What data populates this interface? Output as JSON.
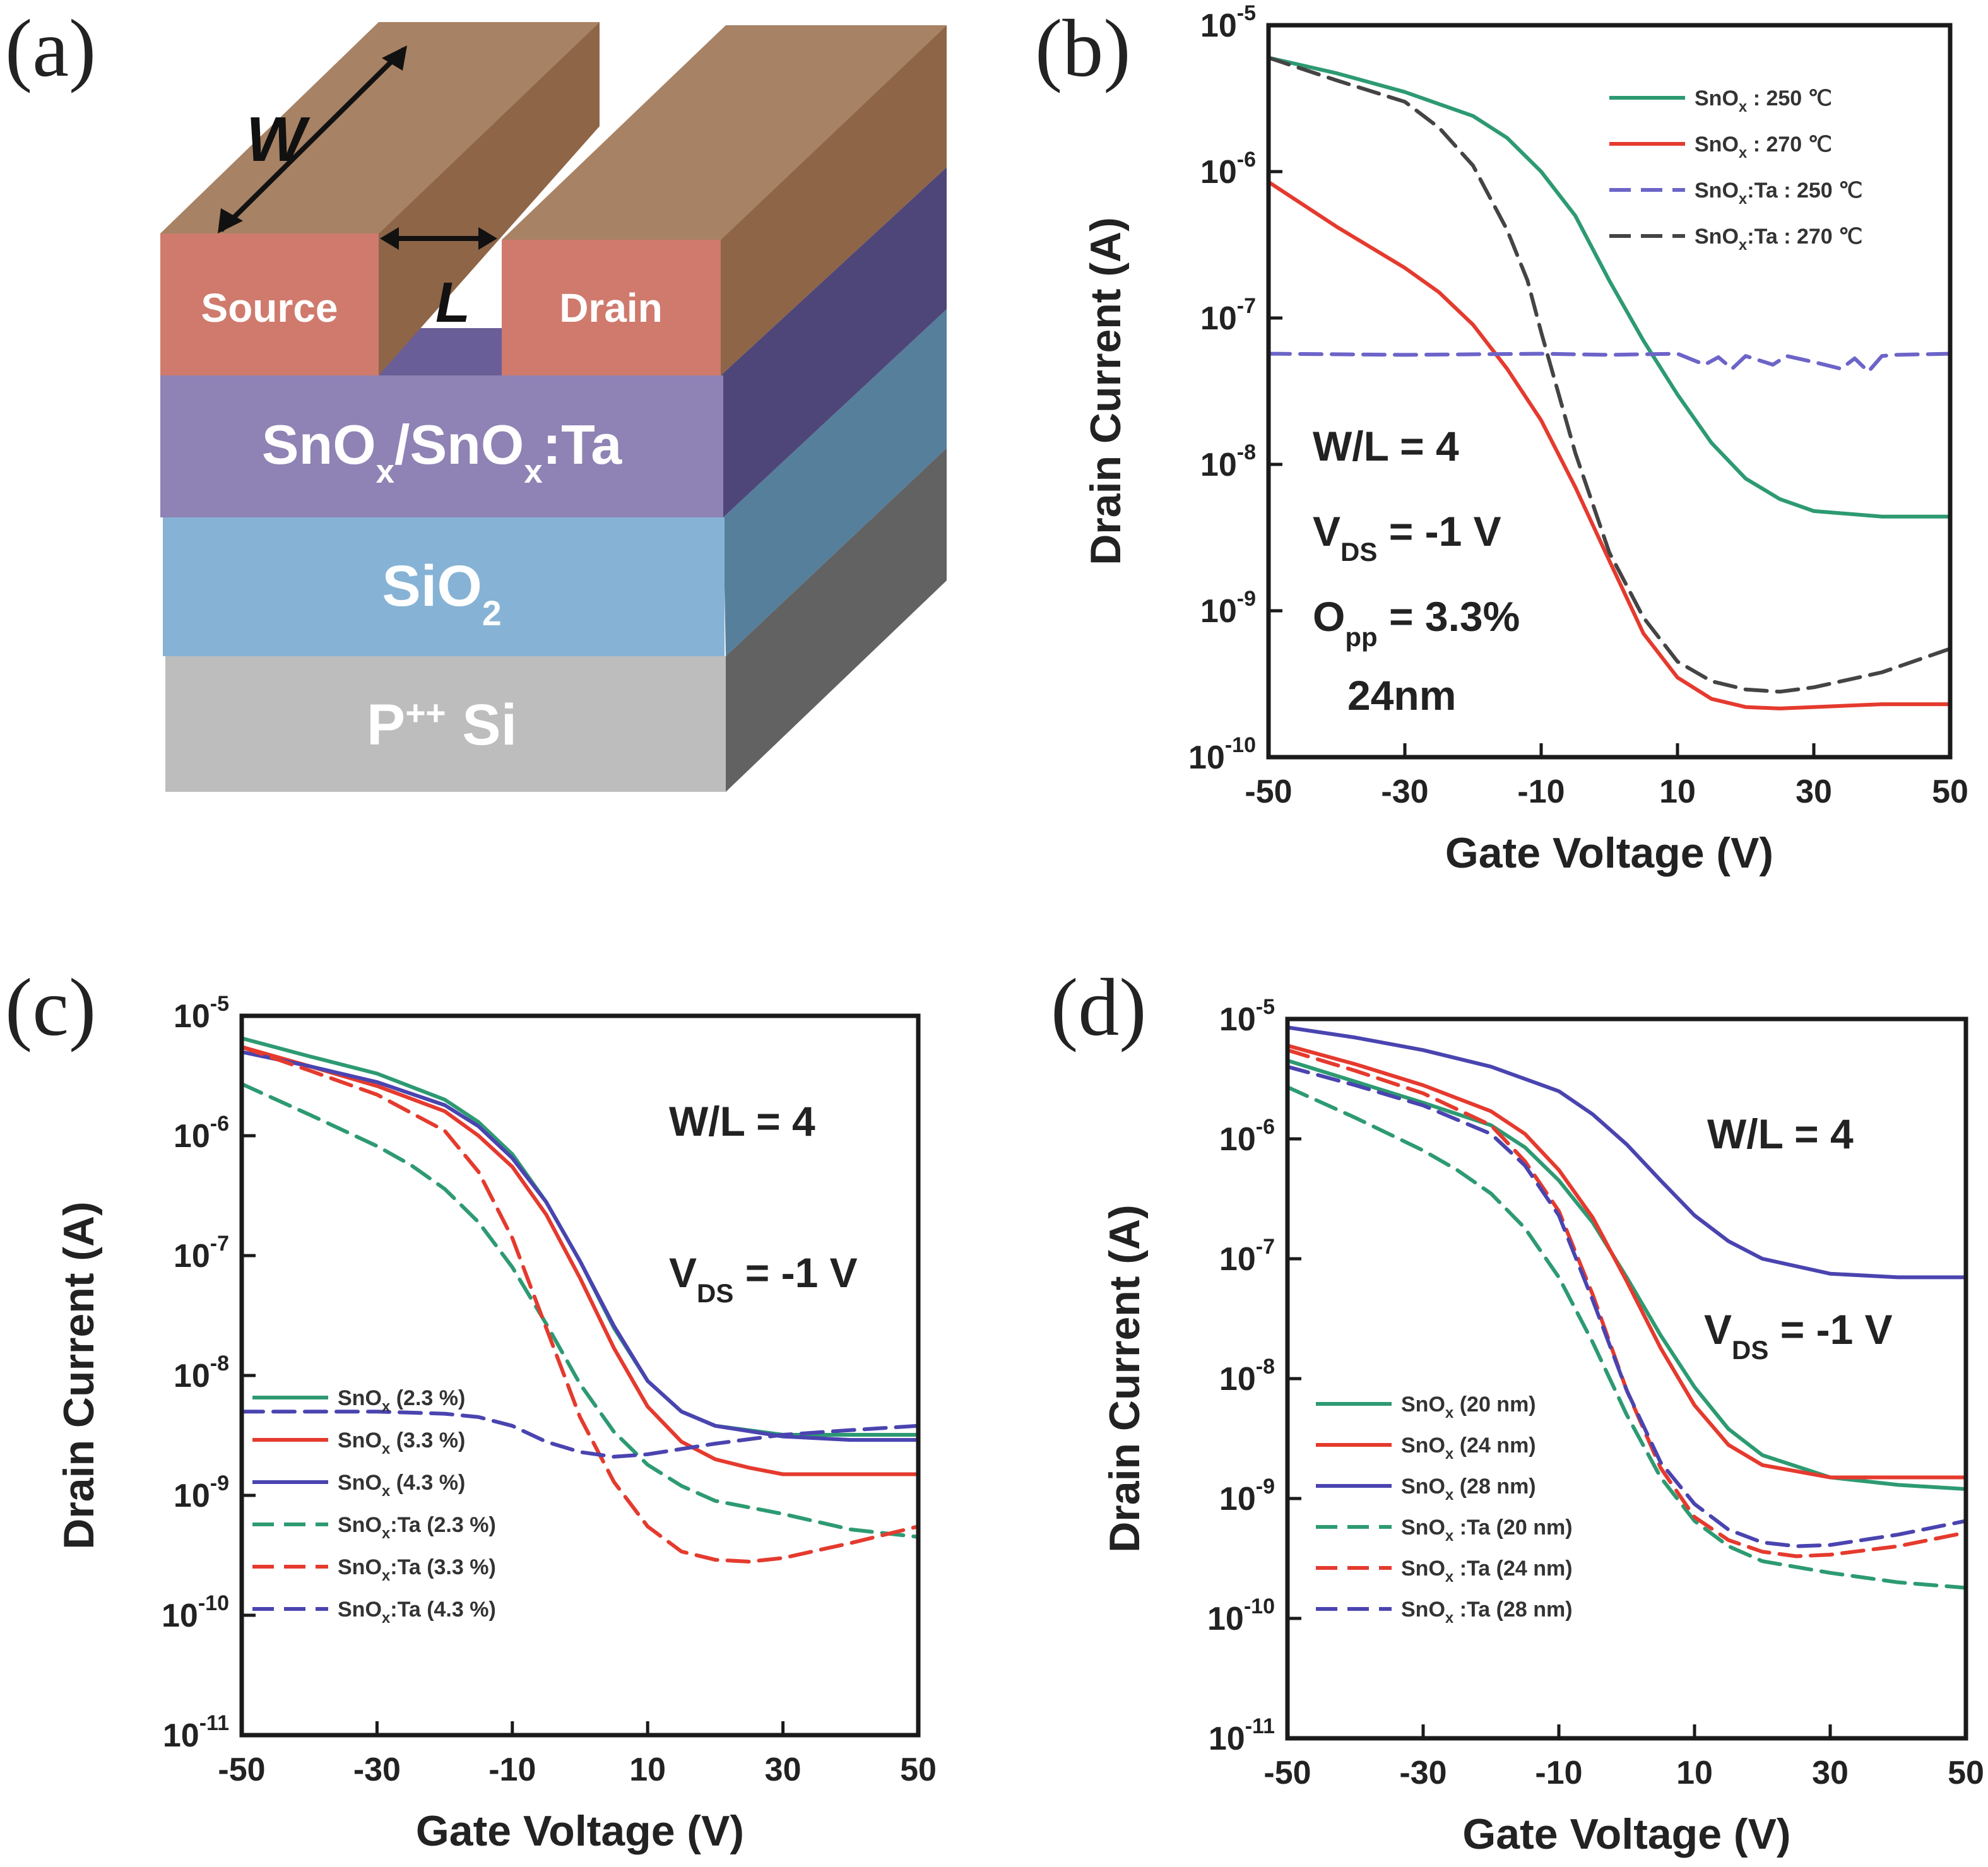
{
  "panel_a": {
    "letter": "(a)",
    "labels": {
      "w": "W",
      "l": "L",
      "source": "Source",
      "drain": "Drain",
      "channel": "SnOx/SnOx:Ta",
      "oxide": "SiO2",
      "substrate": "P++ Si"
    },
    "colors": {
      "contact_top": "#a88264",
      "contact_front": "#cf7a6d",
      "contact_side": "#8e6547",
      "channel_front": "#8f82b4",
      "channel_side": "#4e4679",
      "oxide_front": "#86b3d5",
      "oxide_side": "#567f9c",
      "substrate_front": "#bdbdbd",
      "substrate_side": "#626262"
    }
  },
  "chart_data": [
    {
      "id": "b",
      "letter": "(b)",
      "type": "line",
      "xlabel": "Gate Voltage (V)",
      "ylabel": "Drain Current (A)",
      "xlim": [
        -50,
        50
      ],
      "ylim": [
        1e-10,
        1e-05
      ],
      "yscale": "log",
      "xticks": [
        "-50",
        "-30",
        "-10",
        "10",
        "30",
        "50"
      ],
      "yticks": [
        {
          "base": "10",
          "exp": "-10"
        },
        {
          "base": "10",
          "exp": "-9"
        },
        {
          "base": "10",
          "exp": "-8"
        },
        {
          "base": "10",
          "exp": "-7"
        },
        {
          "base": "10",
          "exp": "-6"
        },
        {
          "base": "10",
          "exp": "-5"
        }
      ],
      "annotations": [
        {
          "text": "W/L = 4",
          "sub": "",
          "after": ""
        },
        {
          "text": "V",
          "sub": "DS",
          "after": " = -1 V"
        },
        {
          "text": "O",
          "sub": "pp",
          "after": " = 3.3%"
        },
        {
          "text": "24nm",
          "sub": "",
          "after": ""
        }
      ],
      "legend_position": "top-right",
      "series": [
        {
          "name": "SnO",
          "sub": "x",
          "suffix": " : 250 ℃",
          "color": "#2d9a72",
          "dash": false,
          "x": [
            -50,
            -40,
            -30,
            -20,
            -15,
            -10,
            -5,
            0,
            5,
            10,
            15,
            20,
            25,
            30,
            40,
            50
          ],
          "y": [
            6e-06,
            4.7e-06,
            3.5e-06,
            2.4e-06,
            1.7e-06,
            1e-06,
            5e-07,
            1.8e-07,
            7e-08,
            3e-08,
            1.4e-08,
            8e-09,
            5.8e-09,
            4.8e-09,
            4.4e-09,
            4.4e-09
          ]
        },
        {
          "name": "SnO",
          "sub": "x",
          "suffix": " : 270 ℃",
          "color": "#e53a2e",
          "dash": false,
          "x": [
            -50,
            -40,
            -30,
            -25,
            -20,
            -15,
            -10,
            -5,
            0,
            5,
            10,
            15,
            20,
            25,
            30,
            40,
            50
          ],
          "y": [
            8.5e-07,
            4.2e-07,
            2.2e-07,
            1.5e-07,
            9e-08,
            4.5e-08,
            2e-08,
            7e-09,
            2.2e-09,
            7e-10,
            3.5e-10,
            2.5e-10,
            2.2e-10,
            2.15e-10,
            2.2e-10,
            2.3e-10,
            2.3e-10
          ]
        },
        {
          "name": "SnO",
          "sub": "x",
          "suffix": ":Ta : 250 ℃",
          "color": "#6c64c8",
          "dash": true,
          "x": [
            -50,
            -30,
            -10,
            0,
            10,
            14,
            16,
            18,
            20,
            24,
            26,
            30,
            34,
            36,
            38,
            40,
            42,
            50
          ],
          "y": [
            5.7e-08,
            5.6e-08,
            5.7e-08,
            5.6e-08,
            5.7e-08,
            4.8e-08,
            5.4e-08,
            4.5e-08,
            5.5e-08,
            4.8e-08,
            5.5e-08,
            5e-08,
            4.5e-08,
            5.3e-08,
            4.3e-08,
            5.5e-08,
            5.6e-08,
            5.7e-08
          ]
        },
        {
          "name": "SnO",
          "sub": "x",
          "suffix": ":Ta : 270 ℃",
          "color": "#444444",
          "dash": true,
          "x": [
            -50,
            -40,
            -30,
            -25,
            -20,
            -15,
            -12,
            -10,
            -5,
            0,
            5,
            10,
            15,
            20,
            25,
            30,
            40,
            50
          ],
          "y": [
            6e-06,
            4.2e-06,
            3e-06,
            2e-06,
            1.1e-06,
            4e-07,
            1.8e-07,
            8e-08,
            1.2e-08,
            2.5e-09,
            9e-10,
            4.5e-10,
            3.3e-10,
            2.9e-10,
            2.8e-10,
            3e-10,
            3.8e-10,
            5.5e-10
          ]
        }
      ]
    },
    {
      "id": "c",
      "letter": "(c)",
      "type": "line",
      "xlabel": "Gate Voltage (V)",
      "ylabel": "Drain Current (A)",
      "xlim": [
        -50,
        50
      ],
      "ylim": [
        1e-11,
        1e-05
      ],
      "yscale": "log",
      "xticks": [
        "-50",
        "-30",
        "-10",
        "10",
        "30",
        "50"
      ],
      "yticks": [
        {
          "base": "10",
          "exp": "-11"
        },
        {
          "base": "10",
          "exp": "-10"
        },
        {
          "base": "10",
          "exp": "-9"
        },
        {
          "base": "10",
          "exp": "-8"
        },
        {
          "base": "10",
          "exp": "-7"
        },
        {
          "base": "10",
          "exp": "-6"
        },
        {
          "base": "10",
          "exp": "-5"
        }
      ],
      "annotations": [
        {
          "text": "W/L = 4",
          "sub": "",
          "after": ""
        },
        {
          "text": "V",
          "sub": "DS",
          "after": " = -1 V"
        }
      ],
      "legend_position": "bottom-left",
      "series": [
        {
          "name": "SnO",
          "sub": "x",
          "suffix": " (2.3 %)",
          "color": "#2d9a72",
          "dash": false,
          "x": [
            -50,
            -40,
            -30,
            -20,
            -15,
            -10,
            -5,
            0,
            5,
            10,
            15,
            20,
            30,
            40,
            50
          ],
          "y": [
            6.5e-06,
            4.6e-06,
            3.3e-06,
            2e-06,
            1.3e-06,
            7e-07,
            2.8e-07,
            9e-08,
            2.5e-08,
            9e-09,
            5e-09,
            3.8e-09,
            3.2e-09,
            3.2e-09,
            3.2e-09
          ]
        },
        {
          "name": "SnO",
          "sub": "x",
          "suffix": " (3.3 %)",
          "color": "#e53a2e",
          "dash": false,
          "x": [
            -50,
            -40,
            -30,
            -20,
            -15,
            -10,
            -5,
            0,
            5,
            10,
            15,
            20,
            25,
            30,
            40,
            50
          ],
          "y": [
            5.5e-06,
            3.8e-06,
            2.6e-06,
            1.6e-06,
            1e-06,
            5.5e-07,
            2.2e-07,
            6.5e-08,
            1.7e-08,
            5.5e-09,
            2.8e-09,
            2e-09,
            1.7e-09,
            1.5e-09,
            1.5e-09,
            1.5e-09
          ]
        },
        {
          "name": "SnO",
          "sub": "x",
          "suffix": " (4.3 %)",
          "color": "#4a44b0",
          "dash": false,
          "x": [
            -50,
            -40,
            -30,
            -20,
            -15,
            -10,
            -5,
            0,
            5,
            10,
            15,
            20,
            30,
            40,
            50
          ],
          "y": [
            5e-06,
            3.8e-06,
            2.8e-06,
            1.8e-06,
            1.2e-06,
            6.5e-07,
            2.8e-07,
            9e-08,
            2.6e-08,
            9e-09,
            5e-09,
            3.8e-09,
            3.1e-09,
            2.9e-09,
            2.9e-09
          ]
        },
        {
          "name": "SnO",
          "sub": "x",
          "suffix": ":Ta (2.3 %)",
          "color": "#2d9a72",
          "dash": true,
          "x": [
            -50,
            -40,
            -30,
            -25,
            -20,
            -15,
            -10,
            -5,
            0,
            5,
            10,
            15,
            20,
            30,
            40,
            50
          ],
          "y": [
            2.7e-06,
            1.5e-06,
            8.2e-07,
            5.7e-07,
            3.6e-07,
            1.9e-07,
            8e-08,
            2.7e-08,
            8.5e-09,
            3.4e-09,
            1.8e-09,
            1.2e-09,
            9e-10,
            7e-10,
            5.2e-10,
            4.5e-10
          ]
        },
        {
          "name": "SnO",
          "sub": "x",
          "suffix": ":Ta (3.3 %)",
          "color": "#e53a2e",
          "dash": true,
          "x": [
            -50,
            -40,
            -30,
            -20,
            -15,
            -10,
            -5,
            0,
            5,
            10,
            15,
            20,
            25,
            30,
            40,
            50
          ],
          "y": [
            5.5e-06,
            3.5e-06,
            2.2e-06,
            1.1e-06,
            5e-07,
            1.4e-07,
            2.5e-08,
            4.5e-09,
            1.3e-09,
            5.5e-10,
            3.4e-10,
            2.9e-10,
            2.8e-10,
            3e-10,
            4e-10,
            5.5e-10
          ]
        },
        {
          "name": "SnO",
          "sub": "x",
          "suffix": ":Ta (4.3 %)",
          "color": "#4a44b0",
          "dash": true,
          "x": [
            -50,
            -40,
            -30,
            -20,
            -15,
            -10,
            -5,
            0,
            5,
            10,
            20,
            30,
            40,
            50
          ],
          "y": [
            5e-09,
            5e-09,
            5e-09,
            4.8e-09,
            4.5e-09,
            3.8e-09,
            2.8e-09,
            2.3e-09,
            2.1e-09,
            2.2e-09,
            2.7e-09,
            3.2e-09,
            3.5e-09,
            3.8e-09
          ]
        }
      ]
    },
    {
      "id": "d",
      "letter": "(d)",
      "type": "line",
      "xlabel": "Gate Voltage (V)",
      "ylabel": "Drain Current (A)",
      "xlim": [
        -50,
        50
      ],
      "ylim": [
        1e-11,
        1e-05
      ],
      "yscale": "log",
      "xticks": [
        "-50",
        "-30",
        "-10",
        "10",
        "30",
        "50"
      ],
      "yticks": [
        {
          "base": "10",
          "exp": "-11"
        },
        {
          "base": "10",
          "exp": "-10"
        },
        {
          "base": "10",
          "exp": "-9"
        },
        {
          "base": "10",
          "exp": "-8"
        },
        {
          "base": "10",
          "exp": "-7"
        },
        {
          "base": "10",
          "exp": "-6"
        },
        {
          "base": "10",
          "exp": "-5"
        }
      ],
      "annotations": [
        {
          "text": "W/L = 4",
          "sub": "",
          "after": ""
        },
        {
          "text": "V",
          "sub": "DS",
          "after": " = -1 V"
        }
      ],
      "legend_position": "bottom-left",
      "series": [
        {
          "name": "SnO",
          "sub": "x",
          "suffix": " (20 nm)",
          "color": "#2d9a72",
          "dash": false,
          "x": [
            -50,
            -40,
            -30,
            -20,
            -15,
            -10,
            -5,
            0,
            5,
            10,
            15,
            20,
            30,
            40,
            50
          ],
          "y": [
            4.5e-06,
            3e-06,
            2e-06,
            1.3e-06,
            8.5e-07,
            4.5e-07,
            2e-07,
            7e-08,
            2.3e-08,
            8.5e-09,
            3.8e-09,
            2.3e-09,
            1.5e-09,
            1.3e-09,
            1.2e-09
          ]
        },
        {
          "name": "SnO",
          "sub": "x",
          "suffix": " (24 nm)",
          "color": "#e53a2e",
          "dash": false,
          "x": [
            -50,
            -40,
            -30,
            -20,
            -15,
            -10,
            -5,
            0,
            5,
            10,
            15,
            20,
            30,
            40,
            50
          ],
          "y": [
            6e-06,
            4.2e-06,
            2.8e-06,
            1.7e-06,
            1.1e-06,
            5.5e-07,
            2.2e-07,
            6.5e-08,
            1.8e-08,
            6e-09,
            2.8e-09,
            1.9e-09,
            1.5e-09,
            1.5e-09,
            1.5e-09
          ]
        },
        {
          "name": "SnO",
          "sub": "x",
          "suffix": " (28 nm)",
          "color": "#4a44b0",
          "dash": false,
          "x": [
            -50,
            -40,
            -30,
            -20,
            -10,
            -5,
            0,
            5,
            10,
            15,
            20,
            30,
            40,
            50
          ],
          "y": [
            8.5e-06,
            7e-06,
            5.5e-06,
            4e-06,
            2.5e-06,
            1.6e-06,
            9e-07,
            4.5e-07,
            2.3e-07,
            1.4e-07,
            1e-07,
            7.5e-08,
            7e-08,
            7e-08
          ]
        },
        {
          "name": "SnO",
          "sub": "x",
          "suffix": " :Ta (20 nm)",
          "color": "#2d9a72",
          "dash": true,
          "x": [
            -50,
            -40,
            -30,
            -25,
            -20,
            -15,
            -10,
            -5,
            0,
            5,
            10,
            15,
            20,
            30,
            40,
            50
          ],
          "y": [
            2.7e-06,
            1.5e-06,
            8e-07,
            5.5e-07,
            3.5e-07,
            1.8e-07,
            7e-08,
            2e-08,
            5e-09,
            1.5e-09,
            6.5e-10,
            4e-10,
            3e-10,
            2.4e-10,
            2e-10,
            1.8e-10
          ]
        },
        {
          "name": "SnO",
          "sub": "x",
          "suffix": " :Ta (24 nm)",
          "color": "#e53a2e",
          "dash": true,
          "x": [
            -50,
            -40,
            -30,
            -20,
            -15,
            -10,
            -5,
            0,
            5,
            10,
            15,
            20,
            25,
            30,
            40,
            50
          ],
          "y": [
            5.5e-06,
            3.7e-06,
            2.4e-06,
            1.3e-06,
            6.5e-07,
            2.5e-07,
            5e-08,
            8e-09,
            1.8e-09,
            7e-10,
            4.5e-10,
            3.6e-10,
            3.3e-10,
            3.4e-10,
            4e-10,
            5.2e-10
          ]
        },
        {
          "name": "SnO",
          "sub": "x",
          "suffix": " :Ta (28 nm)",
          "color": "#4a44b0",
          "dash": true,
          "x": [
            -50,
            -40,
            -30,
            -20,
            -15,
            -10,
            -5,
            0,
            5,
            10,
            15,
            20,
            25,
            30,
            40,
            50
          ],
          "y": [
            4e-06,
            2.8e-06,
            1.9e-06,
            1.1e-06,
            6e-07,
            2.3e-07,
            4.5e-08,
            8e-09,
            2e-09,
            9e-10,
            5.5e-10,
            4.3e-10,
            4e-10,
            4.1e-10,
            5e-10,
            6.5e-10
          ]
        }
      ]
    }
  ]
}
